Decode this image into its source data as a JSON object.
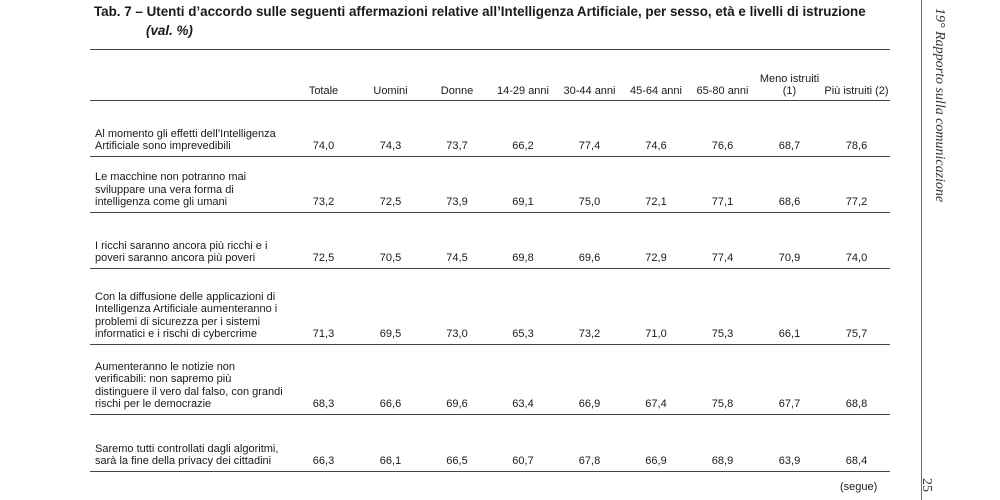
{
  "title": "Tab. 7 – Utenti d’accordo sulle seguenti affermazioni relative all’Intelligenza Artificiale, per sesso, età e livelli di istruzione",
  "subtitle": "(val. %)",
  "side_text": "19° Rapporto sulla comunicazione",
  "page_number": "25",
  "footer_note": "(segue)",
  "columns": [
    "Totale",
    "Uomini",
    "Donne",
    "14-29 anni",
    "30-44 anni",
    "45-64 anni",
    "65-80 anni",
    "Meno istruiti (1)",
    "Più istruiti (2)"
  ],
  "rows": [
    {
      "label": "Al momento gli effetti dell’Intelligenza Artificiale sono imprevedibili",
      "values": [
        "74,0",
        "74,3",
        "73,7",
        "66,2",
        "77,4",
        "74,6",
        "76,6",
        "68,7",
        "78,6"
      ]
    },
    {
      "label": "Le macchine non potranno mai sviluppare una vera forma di intelligenza come gli umani",
      "values": [
        "73,2",
        "72,5",
        "73,9",
        "69,1",
        "75,0",
        "72,1",
        "77,1",
        "68,6",
        "77,2"
      ]
    },
    {
      "label": "I ricchi saranno ancora più ricchi e i poveri saranno ancora più poveri",
      "values": [
        "72,5",
        "70,5",
        "74,5",
        "69,8",
        "69,6",
        "72,9",
        "77,4",
        "70,9",
        "74,0"
      ]
    },
    {
      "label": "Con la diffusione delle applicazioni di Intelligenza Artificiale aumenteranno i problemi di sicurezza per i sistemi informatici e i rischi di cybercrime",
      "values": [
        "71,3",
        "69,5",
        "73,0",
        "65,3",
        "73,2",
        "71,0",
        "75,3",
        "66,1",
        "75,7"
      ]
    },
    {
      "label": "Aumenteranno le notizie non verificabili: non sapremo più distinguere il vero dal falso, con grandi rischi per le democrazie",
      "values": [
        "68,3",
        "66,6",
        "69,6",
        "63,4",
        "66,9",
        "67,4",
        "75,8",
        "67,7",
        "68,8"
      ]
    },
    {
      "label": "Saremo tutti controllati dagli algoritmi, sarà la fine della privacy dei cittadini",
      "values": [
        "66,3",
        "66,1",
        "66,5",
        "60,7",
        "67,8",
        "66,9",
        "68,9",
        "63,9",
        "68,4"
      ]
    }
  ]
}
